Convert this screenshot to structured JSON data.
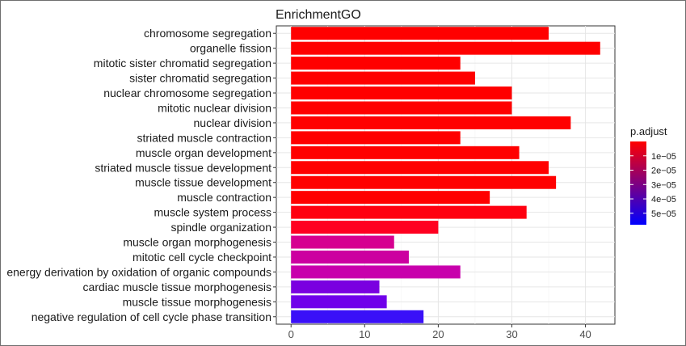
{
  "chart_data": {
    "type": "bar",
    "orientation": "horizontal",
    "title": "EnrichmentGO",
    "xlabel": "",
    "ylabel": "",
    "xlim": [
      -2,
      44
    ],
    "xticks": [
      0,
      10,
      20,
      30,
      40
    ],
    "grid": true,
    "legend": {
      "title": "p.adjust",
      "placement": "right",
      "type": "colorbar",
      "range": [
        0,
        5.8e-05
      ],
      "ticks": [
        1e-05,
        2e-05,
        3e-05,
        4e-05,
        5e-05
      ],
      "tick_labels": [
        "1e−05",
        "2e−05",
        "3e−05",
        "4e−05",
        "5e−05"
      ],
      "low_color": "#ff0000",
      "high_color": "#0000ff"
    },
    "categories": [
      "chromosome segregation",
      "organelle fission",
      "mitotic sister chromatid segregation",
      "sister chromatid segregation",
      "nuclear chromosome segregation",
      "mitotic nuclear division",
      "nuclear division",
      "striated muscle contraction",
      "muscle organ development",
      "striated muscle tissue development",
      "muscle tissue development",
      "muscle contraction",
      "muscle system process",
      "spindle organization",
      "muscle organ morphogenesis",
      "mitotic cell cycle checkpoint",
      "energy derivation by oxidation of organic compounds",
      "cardiac muscle tissue morphogenesis",
      "muscle tissue morphogenesis",
      "negative regulation of cell cycle phase transition"
    ],
    "values": [
      35,
      42,
      23,
      25,
      30,
      30,
      38,
      23,
      31,
      35,
      36,
      27,
      32,
      20,
      14,
      16,
      23,
      12,
      13,
      18
    ],
    "p_adjust": [
      1e-07,
      1e-07,
      1e-07,
      1e-07,
      1e-07,
      1e-07,
      1e-07,
      1e-07,
      1e-07,
      1e-07,
      1e-07,
      1e-07,
      2e-06,
      5e-06,
      2.3e-05,
      2.6e-05,
      2.7e-05,
      4.6e-05,
      4.9e-05,
      5.8e-05
    ],
    "bar_colors": [
      "#ff0000",
      "#ff0000",
      "#ff0000",
      "#ff0000",
      "#ff0000",
      "#ff0000",
      "#ff0000",
      "#ff0000",
      "#ff0000",
      "#ff0000",
      "#ff0000",
      "#ff0000",
      "#ff0010",
      "#ff0020",
      "#d60090",
      "#cc00a0",
      "#c800ac",
      "#7a00e0",
      "#7000ea",
      "#3a10f8"
    ]
  }
}
